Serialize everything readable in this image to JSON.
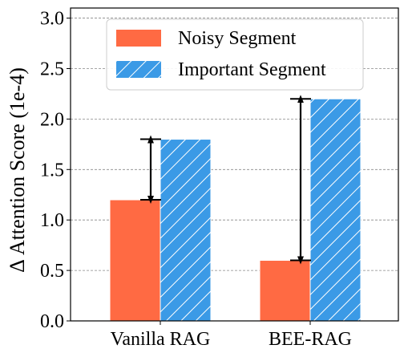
{
  "chart_data": {
    "type": "bar",
    "categories": [
      "Vanilla RAG",
      "BEE-RAG"
    ],
    "series": [
      {
        "name": "Noisy Segment",
        "values": [
          1.2,
          0.6
        ],
        "color": "#ff6a43",
        "pattern": "solid"
      },
      {
        "name": "Important Segment",
        "values": [
          1.8,
          2.2
        ],
        "color": "#3b9ae6",
        "pattern": "hatch"
      }
    ],
    "ylabel": "Δ Attention Score (1e-4)",
    "xlabel": "",
    "ylim": [
      0.0,
      3.1
    ],
    "yticks": [
      "0.0",
      "0.5",
      "1.0",
      "1.5",
      "2.0",
      "2.5",
      "3.0"
    ],
    "grid": "horizontal dashed",
    "legend_position": "top-center",
    "annotations": [
      {
        "type": "double-arrow",
        "category": "Vanilla RAG",
        "from": 1.2,
        "to": 1.8
      },
      {
        "type": "double-arrow",
        "category": "BEE-RAG",
        "from": 0.6,
        "to": 2.2
      }
    ]
  }
}
